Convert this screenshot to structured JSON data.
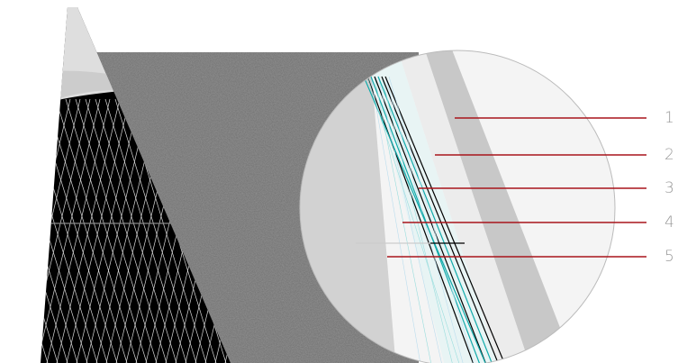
{
  "callouts": [
    {
      "label": "1"
    },
    {
      "label": "2"
    },
    {
      "label": "3"
    },
    {
      "label": "4"
    },
    {
      "label": "5"
    }
  ]
}
